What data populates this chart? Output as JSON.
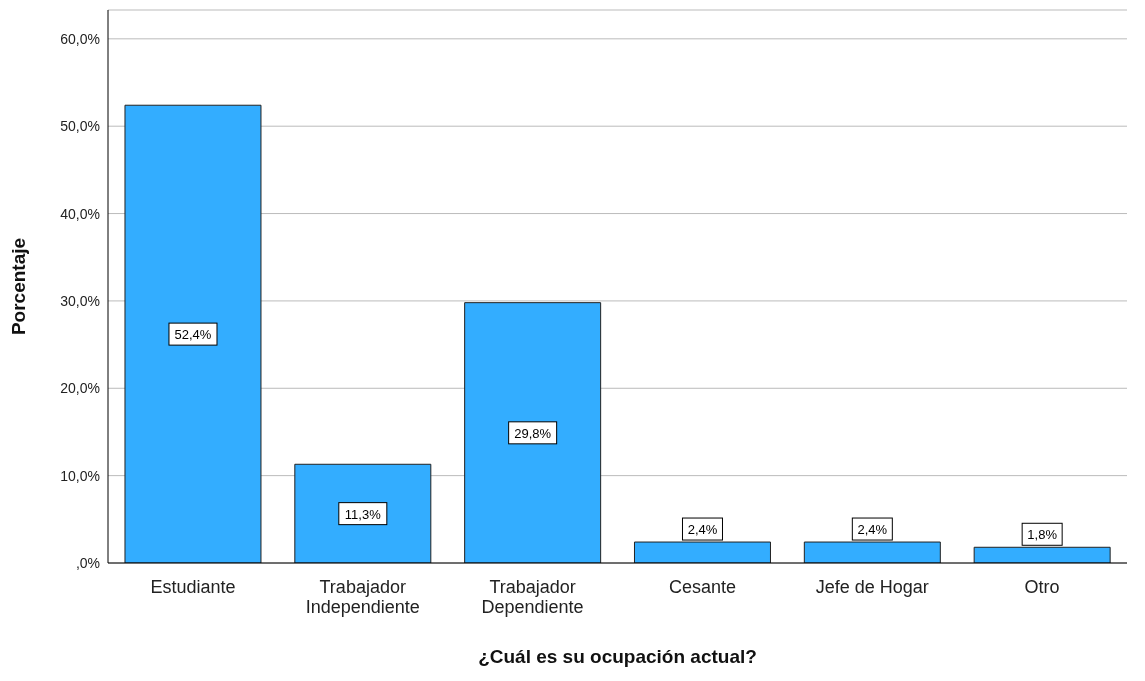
{
  "chart_data": {
    "type": "bar",
    "xlabel": "¿Cuál es su ocupación actual?",
    "ylabel": "Porcentaje",
    "categories": [
      "Estudiante",
      "Trabajador Independiente",
      "Trabajador Dependiente",
      "Cesante",
      "Jefe de Hogar",
      "Otro"
    ],
    "values": [
      52.4,
      11.3,
      29.8,
      2.4,
      2.4,
      1.8
    ],
    "value_labels": [
      "52,4%",
      "11,3%",
      "29,8%",
      "2,4%",
      "2,4%",
      "1,8%"
    ],
    "color": "#33adff",
    "ylim": [
      0,
      63.3
    ],
    "yticks": [
      {
        "value": 0,
        "label": ",0%"
      },
      {
        "value": 10,
        "label": "10,0%"
      },
      {
        "value": 20,
        "label": "20,0%"
      },
      {
        "value": 30,
        "label": "30,0%"
      },
      {
        "value": 40,
        "label": "40,0%"
      },
      {
        "value": 50,
        "label": "50,0%"
      },
      {
        "value": 60,
        "label": "60,0%"
      }
    ],
    "grid": "y",
    "legend": false
  }
}
